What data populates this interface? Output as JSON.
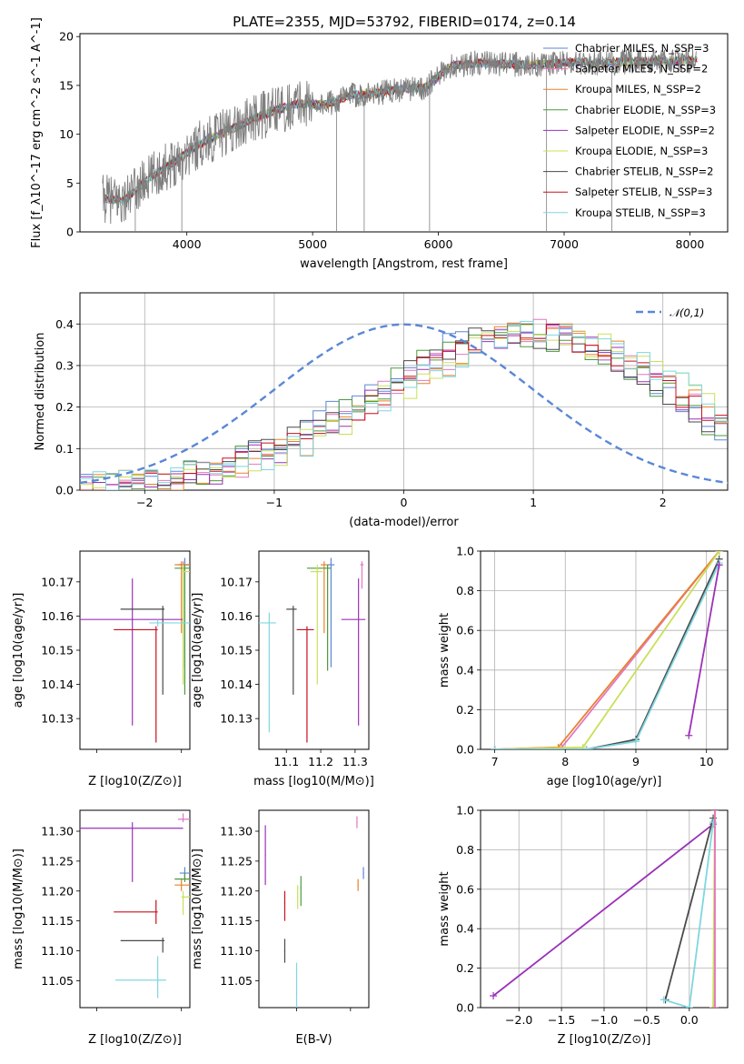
{
  "title": "PLATE=2355, MJD=53792, FIBERID=0174, z=0.14",
  "colors": {
    "data": "#7f7f7f",
    "normal": "#5b87d6",
    "grid": "#b0b0b0"
  },
  "models": [
    {
      "name": "Chabrier MILES",
      "nssp": "3",
      "color": "#5b87d6"
    },
    {
      "name": "Salpeter MILES",
      "nssp": "2",
      "color": "#e377c2"
    },
    {
      "name": "Kroupa MILES",
      "nssp": "2",
      "color": "#e8822b"
    },
    {
      "name": "Chabrier ELODIE",
      "nssp": "3",
      "color": "#4c9a3c"
    },
    {
      "name": "Salpeter ELODIE",
      "nssp": "2",
      "color": "#9a32b8"
    },
    {
      "name": "Kroupa ELODIE",
      "nssp": "3",
      "color": "#c9e05a"
    },
    {
      "name": "Chabrier STELIB",
      "nssp": "2",
      "color": "#4a4a4a"
    },
    {
      "name": "Salpeter STELIB",
      "nssp": "3",
      "color": "#c8101e"
    },
    {
      "name": "Kroupa STELIB",
      "nssp": "3",
      "color": "#7fd6e0"
    }
  ],
  "labels": {
    "spec_x": "wavelength [Angstrom, rest frame]",
    "spec_y": "Flux [f_λ10^-17 erg cm^-2 s^-1 A^-1]",
    "hist_x": "(data-model)/error",
    "hist_y": "Normed distribution",
    "hist_legend": "𝒩(0,1)",
    "z_x": "Z [log10(Z/Z⊙)]",
    "age_y": "age  [log10(age/yr)]",
    "mass_x": "mass [log10(M/M⊙)]",
    "mass_y": "mass [log10(M/M⊙)]",
    "ebv_x": "E(B-V)",
    "mw_y": "mass weight",
    "agew_x": "age  [log10(age/yr)]"
  },
  "chart_data": [
    {
      "id": "spectrum",
      "type": "line",
      "title": "PLATE=2355, MJD=53792, FIBERID=0174, z=0.14",
      "xlim": [
        3150,
        8300
      ],
      "ylim": [
        0,
        20.3
      ],
      "xticks": [
        4000,
        5000,
        6000,
        7000,
        8000
      ],
      "yticks": [
        0,
        5,
        10,
        15,
        20
      ],
      "grid": false,
      "legend": "top-right",
      "continuum": {
        "x": [
          3330,
          3500,
          3700,
          3900,
          4100,
          4300,
          4500,
          4700,
          4900,
          5100,
          5300,
          5500,
          5700,
          5900,
          6100,
          6300,
          6500,
          6700,
          6900,
          7100,
          7300,
          7500,
          7700,
          7900,
          8050
        ],
        "y": [
          3.4,
          3.2,
          5.5,
          7.2,
          9.0,
          10.2,
          11.4,
          12.4,
          13.2,
          13.0,
          14.0,
          14.2,
          14.6,
          14.8,
          17.0,
          17.3,
          17.2,
          17.1,
          17.2,
          17.4,
          17.3,
          17.4,
          17.5,
          17.5,
          17.6
        ]
      }
    },
    {
      "id": "residuals",
      "type": "line",
      "xlim": [
        -2.5,
        2.5
      ],
      "ylim": [
        0,
        0.475
      ],
      "xticks": [
        -2,
        -1,
        0,
        1,
        2
      ],
      "yticks": [
        0.0,
        0.1,
        0.2,
        0.3,
        0.4
      ],
      "grid": true,
      "legend": "top-right",
      "bin_width": 0.1,
      "histogram_envelope": {
        "x": [
          -2.5,
          -2.0,
          -1.5,
          -1.0,
          -0.5,
          0.0,
          0.5,
          1.0,
          1.5,
          2.0,
          2.5
        ],
        "y": [
          0.01,
          0.02,
          0.04,
          0.1,
          0.18,
          0.27,
          0.36,
          0.38,
          0.34,
          0.25,
          0.14
        ]
      },
      "normal_curve": {
        "name": "𝒩(0,1)",
        "mean": 0,
        "sigma": 1
      }
    },
    {
      "id": "age_vs_Z",
      "type": "scatter",
      "errorbars": true,
      "xlim": [
        0.24,
        0.305
      ],
      "ylim": [
        10.121,
        10.179
      ],
      "xticks": [
        0.25,
        0.3
      ],
      "yticks": [
        10.13,
        10.14,
        10.15,
        10.16,
        10.17
      ],
      "grid": false,
      "points": [
        {
          "model": "Chabrier MILES",
          "x": 0.302,
          "y": 10.175
        },
        {
          "model": "Salpeter MILES",
          "x": 0.301,
          "y": 10.175
        },
        {
          "model": "Kroupa MILES",
          "x": 0.3,
          "y": 10.175
        },
        {
          "model": "Chabrier ELODIE",
          "x": 0.302,
          "y": 10.174
        },
        {
          "model": "Salpeter ELODIE",
          "x": 0.271,
          "y": 10.159
        },
        {
          "model": "Kroupa ELODIE",
          "x": 0.301,
          "y": 10.173
        },
        {
          "model": "Chabrier STELIB",
          "x": 0.289,
          "y": 10.162
        },
        {
          "model": "Salpeter STELIB",
          "x": 0.285,
          "y": 10.156
        },
        {
          "model": "Kroupa STELIB",
          "x": 0.286,
          "y": 10.158
        }
      ]
    },
    {
      "id": "age_vs_mass",
      "type": "scatter",
      "errorbars": true,
      "xlim": [
        11.02,
        11.34
      ],
      "ylim": [
        10.121,
        10.179
      ],
      "xticks": [
        11.1,
        11.2,
        11.3
      ],
      "yticks": [
        10.13,
        10.14,
        10.15,
        10.16,
        10.17
      ],
      "grid": false,
      "points": [
        {
          "model": "Chabrier MILES",
          "x": 11.23,
          "y": 10.175
        },
        {
          "model": "Salpeter MILES",
          "x": 11.32,
          "y": 10.175
        },
        {
          "model": "Kroupa MILES",
          "x": 11.21,
          "y": 10.175
        },
        {
          "model": "Chabrier ELODIE",
          "x": 11.22,
          "y": 10.174
        },
        {
          "model": "Salpeter ELODIE",
          "x": 11.31,
          "y": 10.159
        },
        {
          "model": "Kroupa ELODIE",
          "x": 11.19,
          "y": 10.173
        },
        {
          "model": "Chabrier STELIB",
          "x": 11.12,
          "y": 10.162
        },
        {
          "model": "Salpeter STELIB",
          "x": 11.16,
          "y": 10.156
        },
        {
          "model": "Kroupa STELIB",
          "x": 11.05,
          "y": 10.158
        }
      ]
    },
    {
      "id": "massweight_vs_age",
      "type": "line",
      "xlim": [
        6.8,
        10.3
      ],
      "ylim": [
        0,
        1
      ],
      "xticks": [
        7,
        8,
        9,
        10
      ],
      "yticks": [
        0.0,
        0.2,
        0.4,
        0.6,
        0.8,
        1.0
      ],
      "grid": true,
      "series": [
        {
          "model": "Salpeter MILES",
          "x": [
            7.0,
            7.95,
            10.18
          ],
          "y": [
            0.0,
            0.01,
            1.0
          ]
        },
        {
          "model": "Kroupa MILES",
          "x": [
            7.0,
            7.9,
            10.18
          ],
          "y": [
            0.0,
            0.01,
            1.0
          ]
        },
        {
          "model": "Kroupa ELODIE",
          "x": [
            7.0,
            8.25,
            10.18
          ],
          "y": [
            0.0,
            0.01,
            1.0
          ]
        },
        {
          "model": "Chabrier STELIB",
          "x": [
            7.0,
            8.3,
            9.0,
            10.18
          ],
          "y": [
            0.0,
            0.0,
            0.05,
            0.96
          ]
        },
        {
          "model": "Kroupa STELIB",
          "x": [
            7.0,
            8.3,
            9.0,
            10.18
          ],
          "y": [
            0.0,
            0.0,
            0.04,
            0.94
          ]
        },
        {
          "model": "Salpeter ELODIE",
          "x": [
            9.75,
            10.18
          ],
          "y": [
            0.07,
            0.93
          ]
        }
      ]
    },
    {
      "id": "mass_vs_Z",
      "type": "scatter",
      "errorbars": true,
      "xlim": [
        0.24,
        0.305
      ],
      "ylim": [
        11.005,
        11.335
      ],
      "xticks": [
        0.25,
        0.3
      ],
      "yticks": [
        11.05,
        11.1,
        11.15,
        11.2,
        11.25,
        11.3
      ],
      "grid": false,
      "points": [
        {
          "model": "Chabrier MILES",
          "x": 0.302,
          "y": 11.23
        },
        {
          "model": "Salpeter MILES",
          "x": 0.301,
          "y": 11.32
        },
        {
          "model": "Kroupa MILES",
          "x": 0.3,
          "y": 11.21
        },
        {
          "model": "Chabrier ELODIE",
          "x": 0.302,
          "y": 11.22
        },
        {
          "model": "Salpeter ELODIE",
          "x": 0.271,
          "y": 11.305
        },
        {
          "model": "Kroupa ELODIE",
          "x": 0.301,
          "y": 11.19
        },
        {
          "model": "Chabrier STELIB",
          "x": 0.289,
          "y": 11.117
        },
        {
          "model": "Salpeter STELIB",
          "x": 0.285,
          "y": 11.165
        },
        {
          "model": "Kroupa STELIB",
          "x": 0.286,
          "y": 11.051
        }
      ]
    },
    {
      "id": "mass_vs_ebv",
      "type": "scatter",
      "errorbars": true,
      "xlim": [
        0.065,
        0.167
      ],
      "ylim": [
        11.005,
        11.335
      ],
      "xticks": [
        0.1,
        0.15
      ],
      "yticks": [
        11.05,
        11.1,
        11.15,
        11.2,
        11.25,
        11.3
      ],
      "grid": false,
      "points": [
        {
          "model": "Chabrier MILES",
          "x": 0.162,
          "y": 11.23
        },
        {
          "model": "Salpeter MILES",
          "x": 0.156,
          "y": 11.315
        },
        {
          "model": "Kroupa MILES",
          "x": 0.157,
          "y": 11.21
        },
        {
          "model": "Chabrier ELODIE",
          "x": 0.104,
          "y": 11.205
        },
        {
          "model": "Salpeter ELODIE",
          "x": 0.071,
          "y": 11.26
        },
        {
          "model": "Kroupa ELODIE",
          "x": 0.101,
          "y": 11.19
        },
        {
          "model": "Chabrier STELIB",
          "x": 0.089,
          "y": 11.1
        },
        {
          "model": "Salpeter STELIB",
          "x": 0.089,
          "y": 11.18
        },
        {
          "model": "Kroupa STELIB",
          "x": 0.1,
          "y": 11.03
        }
      ]
    },
    {
      "id": "massweight_vs_Z",
      "type": "line",
      "xlim": [
        -2.45,
        0.45
      ],
      "ylim": [
        0,
        1
      ],
      "xticks": [
        -2.0,
        -1.5,
        -1.0,
        -0.5,
        0.0
      ],
      "yticks": [
        0.0,
        0.2,
        0.4,
        0.6,
        0.8,
        1.0
      ],
      "grid": true,
      "series": [
        {
          "model": "Salpeter ELODIE",
          "x": [
            -2.3,
            0.28
          ],
          "y": [
            0.06,
            0.93
          ]
        },
        {
          "model": "Chabrier STELIB",
          "x": [
            -0.28,
            0.28
          ],
          "y": [
            0.04,
            0.96
          ]
        },
        {
          "model": "Kroupa STELIB",
          "x": [
            -0.3,
            0.0,
            0.28
          ],
          "y": [
            0.04,
            0.0,
            0.94
          ]
        },
        {
          "model": "Kroupa ELODIE",
          "x": [
            0.28,
            0.3
          ],
          "y": [
            0.0,
            1.0
          ]
        },
        {
          "model": "Kroupa MILES",
          "x": [
            0.3,
            0.3
          ],
          "y": [
            0.0,
            1.0
          ]
        },
        {
          "model": "Salpeter MILES",
          "x": [
            0.3,
            0.3
          ],
          "y": [
            0.0,
            1.0
          ]
        }
      ]
    }
  ]
}
